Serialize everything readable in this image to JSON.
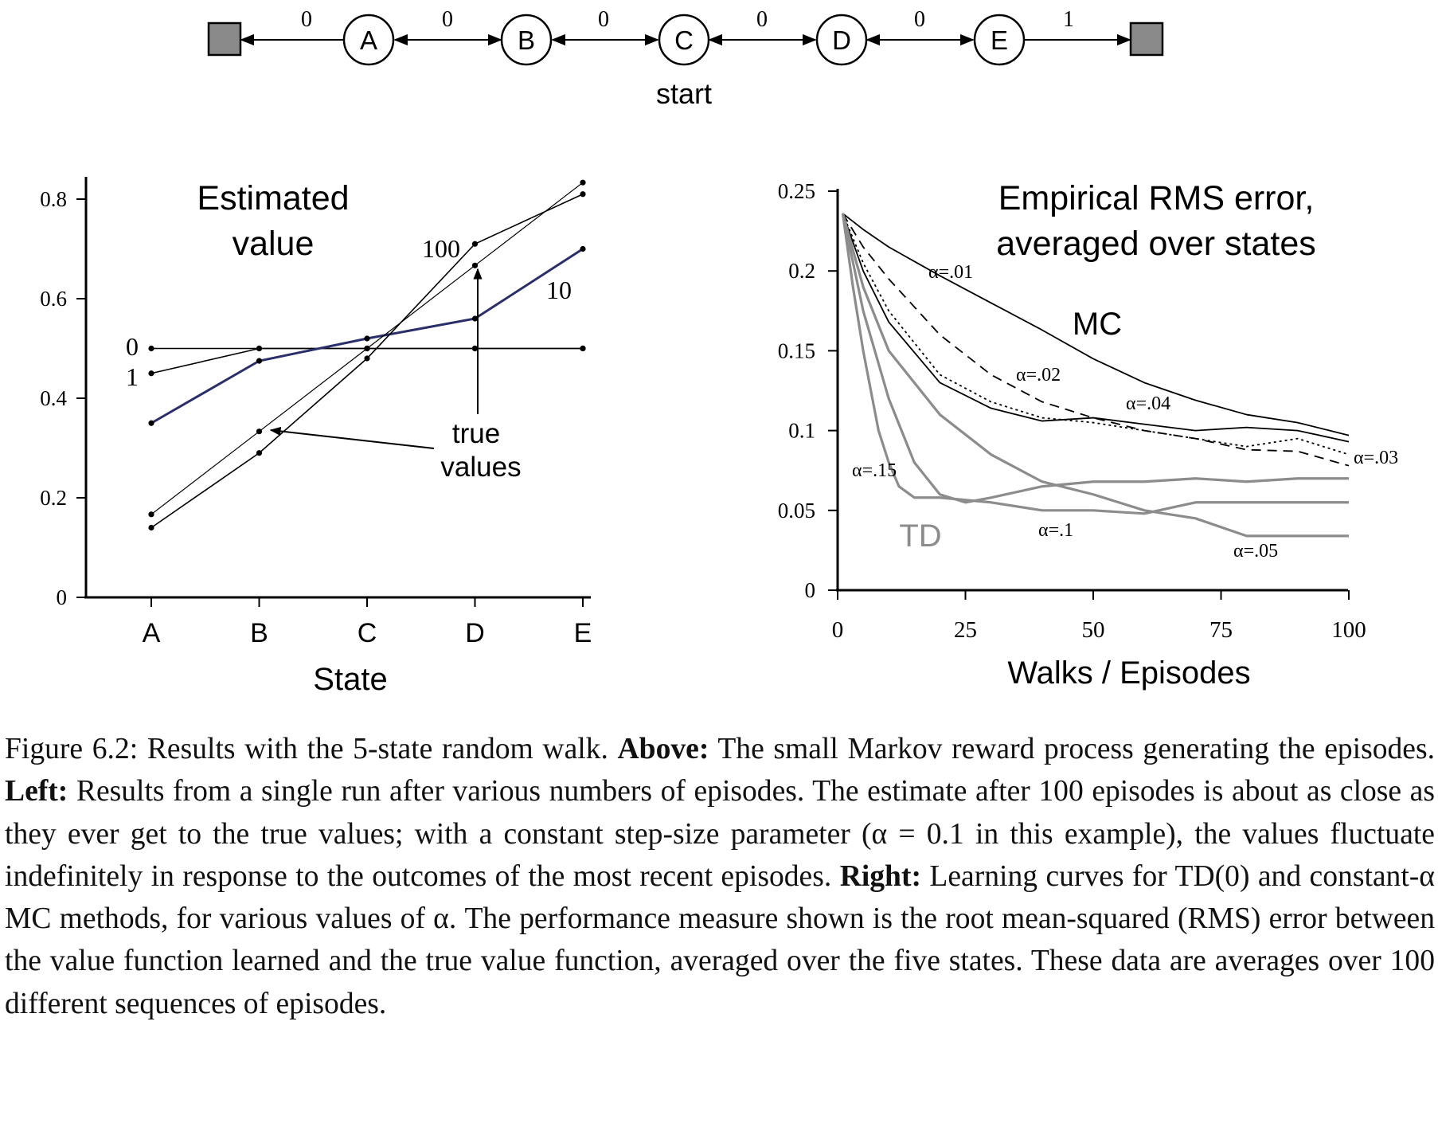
{
  "markov_diagram": {
    "states": [
      "A",
      "B",
      "C",
      "D",
      "E"
    ],
    "rewards": [
      "0",
      "0",
      "0",
      "0",
      "0",
      "1"
    ],
    "start_label": "start"
  },
  "left_chart": {
    "title_line1": "Estimated",
    "title_line2": "value",
    "xlabel": "State",
    "y_ticks": [
      "0",
      "0.2",
      "0.4",
      "0.6",
      "0.8"
    ],
    "annotation_line1": "true",
    "annotation_line2": "values"
  },
  "right_chart": {
    "title_line1": "Empirical RMS error,",
    "title_line2": "averaged over states",
    "xlabel": "Walks / Episodes",
    "x_ticks": [
      "0",
      "25",
      "50",
      "75",
      "100"
    ],
    "y_ticks": [
      "0",
      "0.05",
      "0.1",
      "0.15",
      "0.2",
      "0.25"
    ],
    "group_labels": {
      "mc": "MC",
      "td": "TD"
    }
  },
  "chart_data": [
    {
      "type": "line",
      "title": "Estimated value",
      "xlabel": "State",
      "ylabel": "",
      "categories": [
        "A",
        "B",
        "C",
        "D",
        "E"
      ],
      "ylim": [
        0,
        0.8
      ],
      "series": [
        {
          "name": "0",
          "values": [
            0.5,
            0.5,
            0.5,
            0.5,
            0.5
          ],
          "color": "#000000"
        },
        {
          "name": "1",
          "values": [
            0.45,
            0.5,
            0.5,
            0.5,
            0.5
          ],
          "color": "#000000"
        },
        {
          "name": "10",
          "values": [
            0.35,
            0.475,
            0.52,
            0.56,
            0.7
          ],
          "color": "#2a2f6b"
        },
        {
          "name": "100",
          "values": [
            0.14,
            0.29,
            0.48,
            0.71,
            0.81
          ],
          "color": "#000000"
        },
        {
          "name": "true values",
          "values": [
            0.1667,
            0.3333,
            0.5,
            0.6667,
            0.8333
          ],
          "color": "#000000"
        }
      ]
    },
    {
      "type": "line",
      "title": "Empirical RMS error, averaged over states",
      "xlabel": "Walks / Episodes",
      "ylabel": "",
      "xlim": [
        0,
        100
      ],
      "ylim": [
        0,
        0.25
      ],
      "series": [
        {
          "name": "α=.01",
          "group": "MC",
          "style": "solid",
          "color": "#000000",
          "x": [
            1,
            5,
            10,
            20,
            30,
            40,
            50,
            60,
            70,
            80,
            90,
            100
          ],
          "y": [
            0.236,
            0.226,
            0.215,
            0.197,
            0.18,
            0.163,
            0.145,
            0.13,
            0.119,
            0.11,
            0.105,
            0.097
          ]
        },
        {
          "name": "α=.02",
          "group": "MC",
          "style": "dashed",
          "color": "#000000",
          "x": [
            1,
            5,
            10,
            20,
            30,
            40,
            50,
            60,
            70,
            80,
            90,
            100
          ],
          "y": [
            0.236,
            0.215,
            0.195,
            0.16,
            0.135,
            0.118,
            0.108,
            0.1,
            0.095,
            0.088,
            0.087,
            0.078
          ]
        },
        {
          "name": "α=.03",
          "group": "MC",
          "style": "dotted",
          "color": "#000000",
          "x": [
            1,
            5,
            10,
            20,
            30,
            40,
            50,
            60,
            70,
            80,
            90,
            100
          ],
          "y": [
            0.236,
            0.205,
            0.175,
            0.135,
            0.118,
            0.108,
            0.105,
            0.1,
            0.095,
            0.09,
            0.095,
            0.085
          ]
        },
        {
          "name": "α=.04",
          "group": "MC",
          "style": "solid",
          "color": "#000000",
          "x": [
            1,
            5,
            10,
            20,
            30,
            40,
            50,
            60,
            70,
            80,
            90,
            100
          ],
          "y": [
            0.236,
            0.2,
            0.168,
            0.13,
            0.114,
            0.106,
            0.108,
            0.104,
            0.1,
            0.102,
            0.1,
            0.093
          ]
        },
        {
          "name": "α=.05",
          "group": "TD",
          "style": "solid",
          "color": "#8c8c8c",
          "x": [
            1,
            5,
            10,
            20,
            30,
            40,
            50,
            60,
            70,
            80,
            90,
            100
          ],
          "y": [
            0.236,
            0.19,
            0.15,
            0.11,
            0.085,
            0.068,
            0.06,
            0.05,
            0.045,
            0.034,
            0.034,
            0.034
          ]
        },
        {
          "name": "α=.1",
          "group": "TD",
          "style": "solid",
          "color": "#8c8c8c",
          "x": [
            1,
            5,
            10,
            15,
            20,
            25,
            30,
            40,
            50,
            60,
            70,
            80,
            90,
            100
          ],
          "y": [
            0.236,
            0.175,
            0.12,
            0.08,
            0.06,
            0.055,
            0.058,
            0.065,
            0.068,
            0.068,
            0.07,
            0.068,
            0.07,
            0.07
          ]
        },
        {
          "name": "α=.15",
          "group": "TD",
          "style": "solid",
          "color": "#8c8c8c",
          "x": [
            1,
            3,
            5,
            8,
            10,
            12,
            15,
            20,
            30,
            40,
            50,
            60,
            70,
            80,
            90,
            100
          ],
          "y": [
            0.236,
            0.19,
            0.15,
            0.1,
            0.08,
            0.065,
            0.058,
            0.058,
            0.055,
            0.05,
            0.05,
            0.048,
            0.055,
            0.055,
            0.055,
            0.055
          ]
        }
      ]
    }
  ],
  "caption": {
    "figure_label": "Figure 6.2:",
    "lead": "Results with the 5-state random walk.",
    "above_label": "Above:",
    "above_text": "The small Markov reward process generating the episodes.",
    "left_label": "Left:",
    "left_text": "Results from a single run after various numbers of episodes. The estimate after 100 episodes is about as close as they ever get to the true values; with a constant step-size parameter (α = 0.1 in this example), the values fluctuate indefinitely in response to the outcomes of the most recent episodes.",
    "right_label": "Right:",
    "right_text": "Learning curves for TD(0) and constant-α MC methods, for various values of α. The performance measure shown is the root mean-squared (RMS) error between the value function learned and the true value function, averaged over the five states. These data are averages over 100 different sequences of episodes."
  }
}
